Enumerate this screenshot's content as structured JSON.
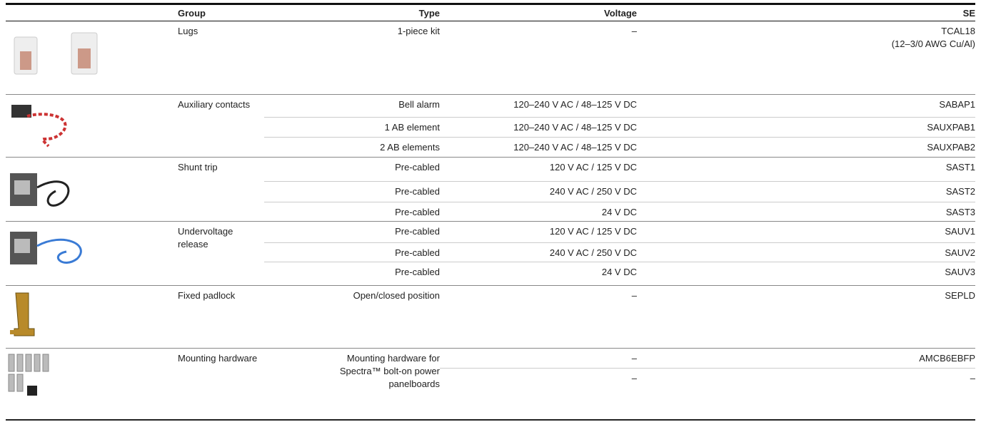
{
  "table": {
    "header": [
      "Group",
      "Type",
      "Voltage",
      "SE"
    ],
    "groups": [
      {
        "name": "Lugs",
        "rows": [
          {
            "type": "1-piece kit",
            "voltage": "–",
            "se": "TCAL18",
            "se_detail": "(12–3/0 AWG Cu/Al)"
          }
        ]
      },
      {
        "name": "Auxiliary contacts",
        "rows": [
          {
            "type": "Bell alarm",
            "voltage": "120–240 V AC / 48–125 V DC",
            "se": "SABAP1"
          },
          {
            "type": "1 AB element",
            "voltage": "120–240 V AC / 48–125 V DC",
            "se": "SAUXPAB1"
          },
          {
            "type": "2 AB elements",
            "voltage": "120–240 V AC / 48–125 V DC",
            "se": "SAUXPAB2"
          }
        ]
      },
      {
        "name": "Shunt trip",
        "rows": [
          {
            "type": "Pre-cabled",
            "voltage": "120 V AC / 125 V DC",
            "se": "SAST1"
          },
          {
            "type": "Pre-cabled",
            "voltage": "240 V AC / 250 V DC",
            "se": "SAST2"
          },
          {
            "type": "Pre-cabled",
            "voltage": "24 V DC",
            "se": "SAST3"
          }
        ]
      },
      {
        "name": "Undervoltage release",
        "rows": [
          {
            "type": "Pre-cabled",
            "voltage": "120 V AC / 125 V DC",
            "se": "SAUV1"
          },
          {
            "type": "Pre-cabled",
            "voltage": "240 V AC / 250 V DC",
            "se": "SAUV2"
          },
          {
            "type": "Pre-cabled",
            "voltage": "24 V DC",
            "se": "SAUV3"
          }
        ]
      },
      {
        "name": "Fixed padlock",
        "rows": [
          {
            "type": "Open/closed position",
            "voltage": "–",
            "se": "SEPLD"
          }
        ]
      },
      {
        "name": "Mounting hardware",
        "type": "Mounting hardware for Spectra™ bolt-on power panelboards",
        "rows": [
          {
            "voltage": "–",
            "se": "AMCB6EBFP"
          },
          {
            "voltage": "–",
            "se": "–"
          }
        ]
      }
    ]
  }
}
